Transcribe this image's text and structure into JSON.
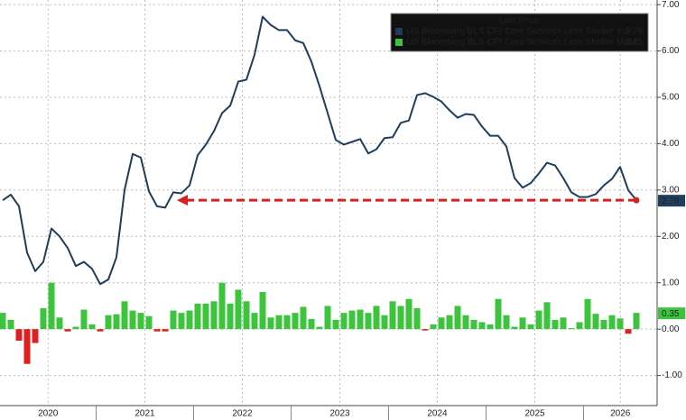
{
  "chart_data": {
    "type": "line_bar",
    "legend_title": "Last Price",
    "year_labels": [
      "2020",
      "2021",
      "2022",
      "2023",
      "2024",
      "2025",
      "2026"
    ],
    "ylim": [
      -1.65,
      7.1
    ],
    "yticks": [
      {
        "value": 7,
        "label": "7.00"
      },
      {
        "value": 6,
        "label": "6.00"
      },
      {
        "value": 5,
        "label": "5.00"
      },
      {
        "value": 4,
        "label": "4.00"
      },
      {
        "value": 3,
        "label": "3.00"
      },
      {
        "value": 2,
        "label": "2.00"
      },
      {
        "value": 1,
        "label": "1.00"
      },
      {
        "value": 0,
        "label": "0.00"
      },
      {
        "value": -1,
        "label": "-1.00"
      }
    ],
    "grid": true,
    "legend_position": "top-right",
    "series": [
      {
        "name": "US Bloomberg BLS CPI Core Services Less Shelter YoY",
        "type": "line",
        "color": "#1f3d5c",
        "values": [
          2.78,
          2.9,
          2.65,
          1.65,
          1.25,
          1.45,
          2.17,
          2.0,
          1.75,
          1.36,
          1.45,
          1.3,
          0.97,
          1.07,
          1.55,
          3.0,
          3.78,
          3.7,
          2.97,
          2.65,
          2.62,
          2.95,
          2.93,
          3.1,
          3.75,
          3.98,
          4.27,
          4.66,
          4.82,
          5.34,
          5.38,
          5.92,
          6.74,
          6.56,
          6.45,
          6.45,
          6.23,
          6.17,
          5.77,
          5.24,
          4.66,
          4.08,
          3.98,
          4.04,
          4.1,
          3.79,
          3.88,
          4.12,
          4.14,
          4.45,
          4.5,
          5.05,
          5.09,
          5.01,
          4.91,
          4.72,
          4.56,
          4.64,
          4.62,
          4.37,
          4.17,
          4.17,
          3.94,
          3.26,
          3.05,
          3.15,
          3.36,
          3.59,
          3.53,
          3.26,
          2.95,
          2.85,
          2.85,
          2.91,
          3.1,
          3.24,
          3.5,
          3.0,
          2.78
        ]
      },
      {
        "name": "US Bloomberg BLS CPI Core Services Less Shelter MoM",
        "type": "bar",
        "color": "#3cc43c",
        "negative_color": "#e02020",
        "values": [
          0.35,
          0.2,
          -0.25,
          -0.75,
          -0.3,
          0.45,
          1.0,
          0.25,
          -0.05,
          0.05,
          0.42,
          0.1,
          -0.05,
          0.3,
          0.32,
          0.6,
          0.4,
          0.35,
          0.28,
          -0.05,
          -0.05,
          0.4,
          0.35,
          0.4,
          0.55,
          0.55,
          0.6,
          1.0,
          0.55,
          0.85,
          0.6,
          0.35,
          0.8,
          0.25,
          0.3,
          0.3,
          0.35,
          0.48,
          0.22,
          0.05,
          0.5,
          0.2,
          0.35,
          0.4,
          0.42,
          0.35,
          0.5,
          0.3,
          0.6,
          0.5,
          0.65,
          0.45,
          -0.03,
          0.1,
          0.25,
          0.3,
          0.5,
          0.3,
          0.2,
          0.15,
          0.1,
          0.65,
          0.3,
          0.05,
          0.25,
          0.1,
          0.4,
          0.58,
          0.2,
          0.25,
          0.02,
          0.15,
          0.65,
          0.33,
          0.2,
          0.3,
          0.23,
          -0.1,
          0.35
        ]
      }
    ],
    "arrow_color": "#d62020"
  }
}
